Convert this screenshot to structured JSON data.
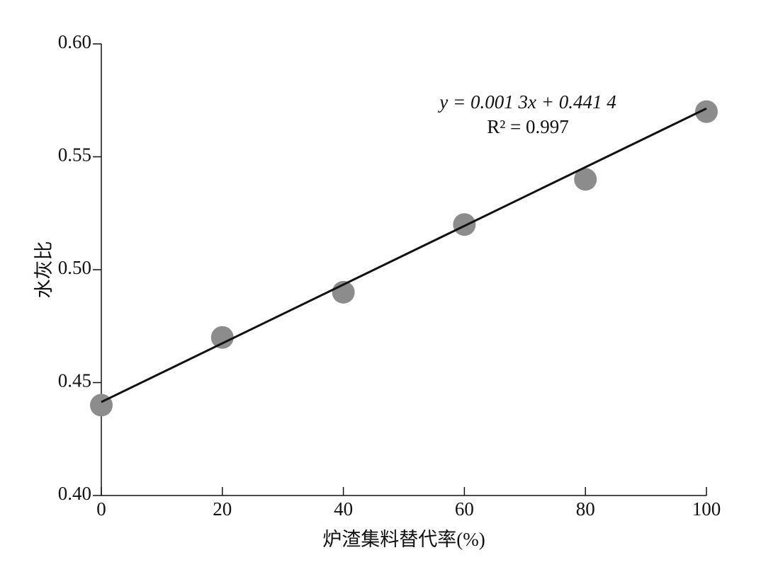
{
  "chart_data": {
    "type": "scatter",
    "x_label": "炉渣集料替代率(%)",
    "y_label": "水灰比",
    "x": [
      0,
      20,
      40,
      60,
      80,
      100
    ],
    "values": [
      0.44,
      0.47,
      0.49,
      0.52,
      0.54,
      0.57
    ],
    "color": "#8c8c8c",
    "trendline": {
      "slope": 0.0013,
      "intercept": 0.4414,
      "color": "#111111"
    },
    "annotations": [
      "y = 0.001 3x + 0.441 4",
      "R² = 0.997"
    ],
    "xlim": [
      0,
      100
    ],
    "xticks": [
      0,
      20,
      40,
      60,
      80,
      100
    ],
    "ylim": [
      0.4,
      0.6
    ],
    "yticks": [
      {
        "value": 0.4,
        "label": "0.40"
      },
      0.45,
      {
        "value": 0.5,
        "label": "0.50"
      },
      0.55,
      {
        "value": 0.6,
        "label": "0.60"
      }
    ],
    "grid": false
  }
}
